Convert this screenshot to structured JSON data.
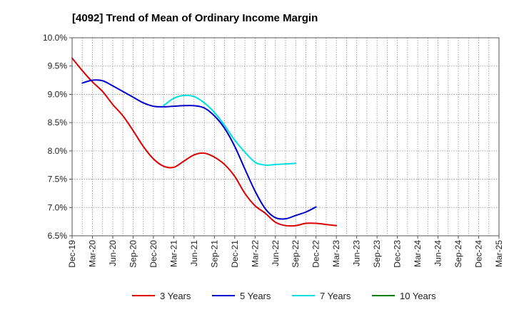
{
  "chart_data": {
    "type": "line",
    "title": "[4092]  Trend of Mean of Ordinary Income Margin",
    "xlabel": "",
    "ylabel": "",
    "x_tick_labels": [
      "Dec-19",
      "Mar-20",
      "Jun-20",
      "Sep-20",
      "Dec-20",
      "Mar-21",
      "Jun-21",
      "Sep-21",
      "Dec-21",
      "Mar-22",
      "Jun-22",
      "Sep-22",
      "Dec-22",
      "Mar-23",
      "Jun-23",
      "Sep-23",
      "Dec-23",
      "Mar-24",
      "Jun-24",
      "Sep-24",
      "Dec-24",
      "Mar-25"
    ],
    "y_tick_labels": [
      "10.0%",
      "9.5%",
      "9.0%",
      "8.5%",
      "8.0%",
      "7.5%",
      "7.0%",
      "6.5%"
    ],
    "y_ticks": [
      10.0,
      9.5,
      9.0,
      8.5,
      8.0,
      7.5,
      7.0,
      6.5
    ],
    "ylim": [
      6.5,
      10.0
    ],
    "grid": true,
    "legend_position": "bottom",
    "series": [
      {
        "name": "3 Years",
        "color": "#dd0000",
        "start_index": 0,
        "values": [
          9.64,
          9.42,
          9.22,
          9.05,
          8.82,
          8.62,
          8.36,
          8.08,
          7.86,
          7.73,
          7.71,
          7.82,
          7.93,
          7.96,
          7.89,
          7.76,
          7.55,
          7.25,
          7.03,
          6.9,
          6.74,
          6.68,
          6.68,
          6.72,
          6.72,
          6.7,
          6.68
        ]
      },
      {
        "name": "5 Years",
        "color": "#0000cc",
        "start_index": 1,
        "values": [
          9.2,
          9.25,
          9.24,
          9.15,
          9.05,
          8.95,
          8.85,
          8.79,
          8.78,
          8.79,
          8.8,
          8.8,
          8.76,
          8.62,
          8.4,
          8.08,
          7.68,
          7.29,
          6.98,
          6.82,
          6.8,
          6.86,
          6.92,
          7.01
        ]
      },
      {
        "name": "7 Years",
        "color": "#00e0e0",
        "start_index": 9,
        "values": [
          8.8,
          8.93,
          8.98,
          8.96,
          8.85,
          8.68,
          8.45,
          8.19,
          7.98,
          7.8,
          7.75,
          7.76,
          7.77,
          7.78
        ]
      },
      {
        "name": "10 Years",
        "color": "#008000",
        "start_index": 0,
        "values": []
      }
    ]
  }
}
